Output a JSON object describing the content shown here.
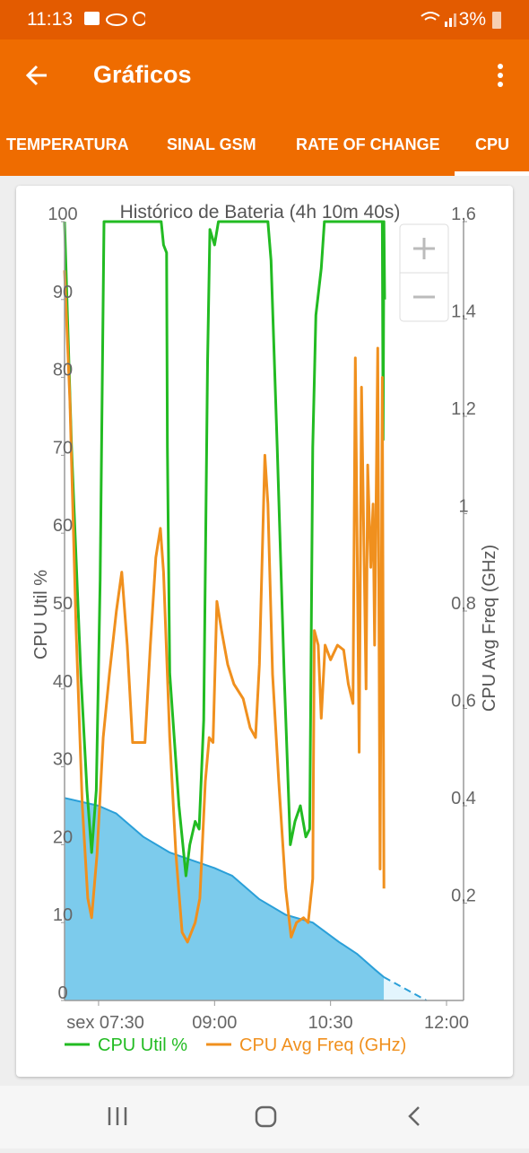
{
  "status_bar": {
    "time": "11:13",
    "battery": "3%"
  },
  "app_bar": {
    "title": "Gráficos"
  },
  "tabs": [
    "TEMPERATURA",
    "SINAL GSM",
    "RATE OF CHANGE",
    "CPU"
  ],
  "chart_data": {
    "type": "line",
    "title": "Histórico de Bateria (4h 10m 40s)",
    "y_label": "CPU Util %",
    "y2_label": "CPU Avg Freq (GHz)",
    "xlim": [
      7.06,
      12.22
    ],
    "xticks": [
      {
        "value": 7.5,
        "label": "sex 07:30"
      },
      {
        "value": 9,
        "label": "09:00"
      },
      {
        "value": 10.5,
        "label": "10:30"
      },
      {
        "value": 12,
        "label": "12:00"
      }
    ],
    "ylim": [
      0,
      100
    ],
    "yticks": [
      0,
      10,
      20,
      30,
      40,
      50,
      60,
      70,
      80,
      90,
      100
    ],
    "y2lim": [
      0,
      1.6
    ],
    "y2ticks": [
      {
        "value": 0.2,
        "label": "0,2"
      },
      {
        "value": 0.4,
        "label": "0,4"
      },
      {
        "value": 0.6,
        "label": "0,6"
      },
      {
        "value": 0.8,
        "label": "0,8"
      },
      1,
      {
        "value": 1.2,
        "label": "1,2"
      },
      {
        "value": 1.4,
        "label": "1,4"
      },
      {
        "value": 1.6,
        "label": "1,6"
      }
    ],
    "series": [
      {
        "color": "#7ccbec",
        "line_color": "#2a9fd8",
        "fill": true,
        "x": [
          7.06,
          7.5,
          7.73,
          8.08,
          8.42,
          8.71,
          9.0,
          9.23,
          9.58,
          9.92,
          10.27,
          10.61,
          10.84,
          11.07,
          11.19
        ],
        "values": [
          26,
          25,
          24,
          21,
          19,
          18,
          17,
          16,
          13,
          11,
          10,
          7.5,
          6,
          4,
          3
        ]
      },
      {
        "color": "#e3f5fd",
        "line_color": "#2a9fd8",
        "fill": true,
        "style": "dashed",
        "x": [
          11.19,
          11.74
        ],
        "values": [
          3,
          0
        ]
      },
      {
        "name": "CPU Util %",
        "color": "#22bb22",
        "x": [
          7.06,
          7.15,
          7.27,
          7.35,
          7.41,
          7.47,
          7.52,
          7.57,
          8.31,
          8.34,
          8.38,
          8.39,
          8.42,
          8.54,
          8.63,
          8.68,
          8.75,
          8.8,
          8.86,
          8.91,
          8.94,
          9.0,
          9.05,
          9.69,
          9.73,
          9.81,
          9.9,
          9.98,
          10.04,
          10.11,
          10.18,
          10.23,
          10.27,
          10.31,
          10.38,
          10.42,
          11.17,
          11.18,
          11.19,
          11.2
        ],
        "values": [
          100,
          71,
          42,
          27,
          19,
          27,
          54,
          100,
          100,
          97,
          96,
          71,
          42,
          25,
          16,
          20,
          23,
          22,
          36,
          82,
          99,
          97,
          100,
          100,
          95,
          71,
          42,
          20,
          23,
          25,
          21,
          22,
          71,
          88,
          94,
          100,
          100,
          72,
          100,
          90
        ]
      },
      {
        "name": "CPU Avg Freq (GHz)",
        "color": "#f0901e",
        "axis": "y2",
        "x": [
          7.06,
          7.13,
          7.21,
          7.29,
          7.36,
          7.41,
          7.48,
          7.56,
          7.64,
          7.73,
          7.8,
          7.87,
          7.94,
          8.02,
          8.1,
          8.17,
          8.24,
          8.3,
          8.34,
          8.42,
          8.5,
          8.58,
          8.65,
          8.75,
          8.81,
          8.88,
          8.93,
          8.98,
          9.03,
          9.09,
          9.17,
          9.25,
          9.37,
          9.46,
          9.53,
          9.58,
          9.65,
          9.69,
          9.75,
          9.83,
          9.92,
          9.99,
          10.06,
          10.15,
          10.21,
          10.27,
          10.29,
          10.34,
          10.38,
          10.43,
          10.5,
          10.59,
          10.67,
          10.73,
          10.79,
          10.82,
          10.87,
          10.9,
          10.96,
          10.98,
          11.02,
          11.05,
          11.07,
          11.11,
          11.14,
          11.17,
          11.19
        ],
        "values": [
          1.5,
          1.23,
          0.76,
          0.4,
          0.21,
          0.17,
          0.3,
          0.54,
          0.67,
          0.8,
          0.88,
          0.73,
          0.53,
          0.53,
          0.53,
          0.73,
          0.91,
          0.97,
          0.88,
          0.54,
          0.3,
          0.14,
          0.12,
          0.16,
          0.21,
          0.45,
          0.54,
          0.53,
          0.82,
          0.76,
          0.69,
          0.65,
          0.62,
          0.56,
          0.54,
          0.69,
          1.12,
          1.02,
          0.67,
          0.45,
          0.23,
          0.13,
          0.16,
          0.17,
          0.16,
          0.25,
          0.76,
          0.73,
          0.58,
          0.73,
          0.7,
          0.73,
          0.72,
          0.65,
          0.61,
          1.32,
          0.51,
          1.26,
          0.64,
          1.1,
          0.89,
          1.02,
          0.73,
          1.34,
          0.27,
          1.28,
          0.23
        ]
      }
    ]
  }
}
